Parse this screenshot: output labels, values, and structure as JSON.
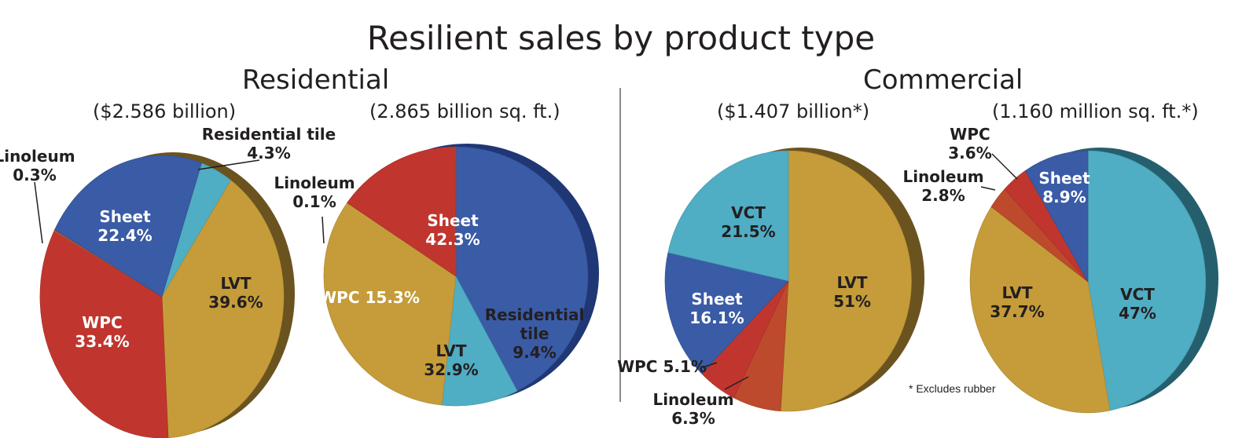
{
  "title": "Resilient sales by product type",
  "sections": {
    "residential": "Residential",
    "commercial": "Commercial"
  },
  "footnote": "* Excludes rubber",
  "colors": {
    "Sheet": "#3a5ba6",
    "LVT": "#c59c39",
    "WPC": "#c0362e",
    "Linoleum": "#bd4a2c",
    "Residential tile": "#4fadc4",
    "VCT": "#4fadc4"
  },
  "chart_data": [
    {
      "type": "pie",
      "title": "($2.586 billion)",
      "group": "Residential",
      "slices": [
        {
          "label": "Residential tile",
          "value": 4.3,
          "value_label": "4.3%"
        },
        {
          "label": "LVT",
          "value": 39.6,
          "value_label": "39.6%"
        },
        {
          "label": "WPC",
          "value": 33.4,
          "value_label": "33.4%"
        },
        {
          "label": "Linoleum",
          "value": 0.3,
          "value_label": "0.3%"
        },
        {
          "label": "Sheet",
          "value": 22.4,
          "value_label": "22.4%"
        }
      ]
    },
    {
      "type": "pie",
      "title": "(2.865 billion sq. ft.)",
      "group": "Residential",
      "slices": [
        {
          "label": "Sheet",
          "value": 42.3,
          "value_label": "42.3%"
        },
        {
          "label": "Residential tile",
          "value": 9.4,
          "value_label": "9.4%"
        },
        {
          "label": "LVT",
          "value": 32.9,
          "value_label": "32.9%"
        },
        {
          "label": "WPC",
          "value": 15.3,
          "value_label": "15.3%"
        },
        {
          "label": "Linoleum",
          "value": 0.1,
          "value_label": "0.1%"
        }
      ]
    },
    {
      "type": "pie",
      "title": "($1.407 billion*)",
      "group": "Commercial",
      "slices": [
        {
          "label": "LVT",
          "value": 51,
          "value_label": "51%"
        },
        {
          "label": "Linoleum",
          "value": 6.3,
          "value_label": "6.3%"
        },
        {
          "label": "WPC",
          "value": 5.1,
          "value_label": "5.1%"
        },
        {
          "label": "Sheet",
          "value": 16.1,
          "value_label": "16.1%"
        },
        {
          "label": "VCT",
          "value": 21.5,
          "value_label": "21.5%"
        }
      ]
    },
    {
      "type": "pie",
      "title": "(1.160 million sq. ft.*)",
      "group": "Commercial",
      "slices": [
        {
          "label": "VCT",
          "value": 47,
          "value_label": "47%"
        },
        {
          "label": "LVT",
          "value": 37.7,
          "value_label": "37.7%"
        },
        {
          "label": "Linoleum",
          "value": 2.8,
          "value_label": "2.8%"
        },
        {
          "label": "WPC",
          "value": 3.6,
          "value_label": "3.6%"
        },
        {
          "label": "Sheet",
          "value": 8.9,
          "value_label": "8.9%"
        }
      ]
    }
  ]
}
